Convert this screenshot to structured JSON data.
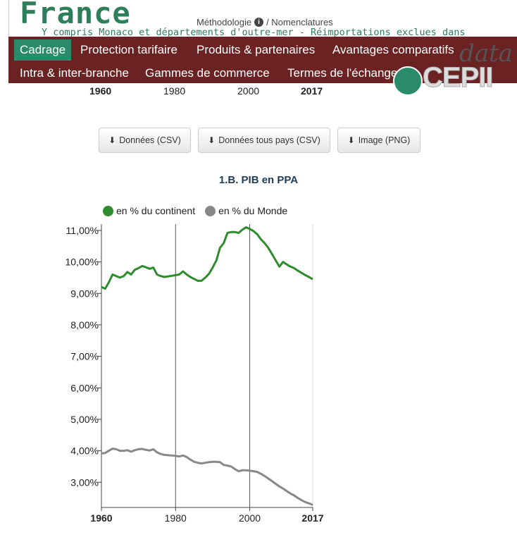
{
  "header": {
    "country": "France",
    "methodology": "Méthodologie",
    "nomenclatures": "/ Nomenclatures",
    "info_glyph": "i",
    "subtitle": "Y compris Monaco et départements d'outre-mer - Réimportations exclues dans"
  },
  "nav": {
    "row1": [
      "Cadrage",
      "Protection tarifaire",
      "Produits & partenaires",
      "Avantages comparatifs"
    ],
    "row2": [
      "Intra & inter-branche",
      "Gammes de commerce",
      "Termes de l'échange"
    ],
    "active": "Cadrage"
  },
  "logo": {
    "data": "data",
    "cepii": "CEPII"
  },
  "top_axis": [
    "1960",
    "1980",
    "2000",
    "2017"
  ],
  "buttons": {
    "csv": "Données (CSV)",
    "all_csv": "Données tous pays (CSV)",
    "png": "Image (PNG)",
    "icon": "download-icon"
  },
  "colors": {
    "green": "#2e8b2e",
    "gray": "#888888",
    "nav": "#6b2222",
    "active_tab": "#2a8a6a"
  },
  "chart_data": {
    "type": "line",
    "title": "1.B. PIB en PPA",
    "x_tick_labels": [
      "1960",
      "1980",
      "2000",
      "2017"
    ],
    "xlim": [
      1960,
      2017
    ],
    "ylim": [
      2.2,
      11.2
    ],
    "y_ticks": [
      3,
      4,
      5,
      6,
      7,
      8,
      9,
      10,
      11
    ],
    "y_tick_labels": [
      "3,00%",
      "4,00%",
      "5,00%",
      "6,00%",
      "7,00%",
      "8,00%",
      "9,00%",
      "10,00%",
      "11,00%"
    ],
    "grid": "vertical",
    "legend_position": "top",
    "x": [
      1960,
      1961,
      1962,
      1963,
      1964,
      1965,
      1966,
      1967,
      1968,
      1969,
      1970,
      1971,
      1972,
      1973,
      1974,
      1975,
      1976,
      1977,
      1978,
      1979,
      1980,
      1981,
      1982,
      1983,
      1984,
      1985,
      1986,
      1987,
      1988,
      1989,
      1990,
      1991,
      1992,
      1993,
      1994,
      1995,
      1996,
      1997,
      1998,
      1999,
      2000,
      2001,
      2002,
      2003,
      2004,
      2005,
      2006,
      2007,
      2008,
      2009,
      2010,
      2011,
      2012,
      2013,
      2014,
      2015,
      2016,
      2017
    ],
    "series": [
      {
        "name": "en % du continent",
        "color": "#2e8b2e",
        "values": [
          9.2,
          9.15,
          9.35,
          9.6,
          9.55,
          9.5,
          9.55,
          9.68,
          9.6,
          9.75,
          9.8,
          9.87,
          9.83,
          9.78,
          9.82,
          9.6,
          9.55,
          9.52,
          9.54,
          9.56,
          9.58,
          9.6,
          9.7,
          9.6,
          9.52,
          9.46,
          9.4,
          9.4,
          9.5,
          9.62,
          9.82,
          10.05,
          10.45,
          10.6,
          10.92,
          10.95,
          10.95,
          10.92,
          11.02,
          11.1,
          11.05,
          10.98,
          10.88,
          10.72,
          10.6,
          10.45,
          10.25,
          10.05,
          9.85,
          10.0,
          9.92,
          9.85,
          9.8,
          9.72,
          9.65,
          9.58,
          9.52,
          9.45
        ]
      },
      {
        "name": "en % du Monde",
        "color": "#888888",
        "values": [
          3.92,
          3.93,
          4.0,
          4.07,
          4.05,
          4.0,
          4.0,
          4.02,
          3.97,
          4.02,
          4.05,
          4.06,
          4.03,
          4.01,
          4.05,
          3.95,
          3.9,
          3.87,
          3.86,
          3.85,
          3.84,
          3.82,
          3.85,
          3.8,
          3.72,
          3.65,
          3.62,
          3.6,
          3.62,
          3.64,
          3.65,
          3.65,
          3.64,
          3.55,
          3.53,
          3.5,
          3.42,
          3.35,
          3.38,
          3.38,
          3.37,
          3.35,
          3.33,
          3.27,
          3.2,
          3.12,
          3.04,
          2.95,
          2.87,
          2.8,
          2.72,
          2.64,
          2.58,
          2.5,
          2.43,
          2.37,
          2.33,
          2.28
        ]
      }
    ]
  }
}
